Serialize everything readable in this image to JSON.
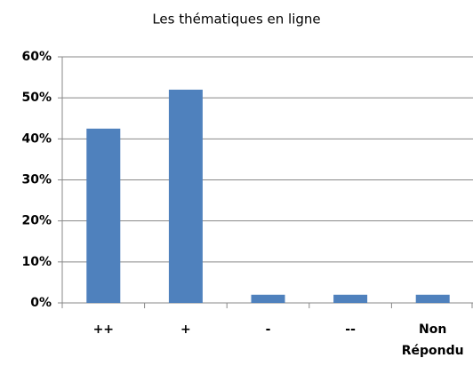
{
  "chart_data": {
    "type": "bar",
    "title": "Les thématiques en ligne",
    "categories": [
      "++",
      "+",
      "-",
      "--",
      "Non Répondu"
    ],
    "values": [
      42.5,
      52,
      2,
      2,
      2
    ],
    "color": "#4f81bd",
    "ylim": [
      0,
      60
    ],
    "yticks": [
      {
        "value": 0,
        "label": "0%"
      },
      {
        "value": 10,
        "label": "10%"
      },
      {
        "value": 20,
        "label": "20%"
      },
      {
        "value": 30,
        "label": "30%"
      },
      {
        "value": 40,
        "label": "40%"
      },
      {
        "value": 50,
        "label": "50%"
      },
      {
        "value": 60,
        "label": "60%"
      }
    ],
    "grid": true
  }
}
